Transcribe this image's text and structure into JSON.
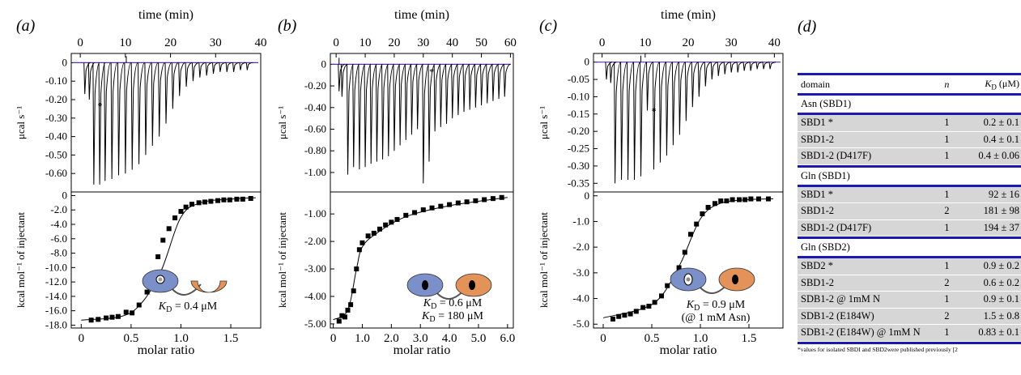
{
  "panels": [
    {
      "label": "(a)",
      "top_axis": {
        "label": "time (min)",
        "range": [
          -2,
          40
        ],
        "ticks": [
          0,
          10,
          20,
          30,
          40
        ]
      },
      "top_ylabel": "μcal s⁻¹",
      "top_yrange": [
        -0.7,
        0.05
      ],
      "top_yticks": [
        "0",
        "-0.10",
        "-0.20",
        "-0.30",
        "-0.40",
        "-0.50",
        "-0.60"
      ],
      "top_ytick_values": [
        0,
        -0.1,
        -0.2,
        -0.3,
        -0.4,
        -0.5,
        -0.6
      ],
      "asterisk": "*",
      "bottom_ylabel": "kcal mol⁻¹ of injectant",
      "bottom_yrange": [
        -18.4,
        0.5
      ],
      "bottom_yticks": [
        "0",
        "-2.0",
        "-4.0",
        "-6.0",
        "-8.0",
        "-10.0",
        "-12.0",
        "-14.0",
        "-16.0",
        "-18.0"
      ],
      "bottom_ytick_values": [
        0,
        -2,
        -4,
        -6,
        -8,
        -10,
        -12,
        -14,
        -16,
        -18
      ],
      "xlabel": "molar ratio",
      "x_range": [
        -0.1,
        1.8
      ],
      "xticks": [
        "0",
        "0.5",
        "1.0",
        "1.5"
      ],
      "xtick_values": [
        0,
        0.5,
        1.0,
        1.5
      ],
      "annotation_lines": [
        "K_D = 0.4 μM"
      ],
      "cartoon": "single-site-binding-cartoon"
    },
    {
      "label": "(b)",
      "top_axis": {
        "label": "time (min)",
        "range": [
          -2,
          61
        ],
        "ticks": [
          0,
          10,
          20,
          30,
          40,
          50,
          60
        ]
      },
      "top_ylabel": "μcal s⁻¹",
      "top_yrange": [
        -1.18,
        0.1
      ],
      "top_yticks": [
        "0",
        "-0.20",
        "-0.40",
        "-0.60",
        "-0.80",
        "-1.00"
      ],
      "top_ytick_values": [
        0,
        -0.2,
        -0.4,
        -0.6,
        -0.8,
        -1.0
      ],
      "asterisk": "*",
      "bottom_ylabel": "kcal mol⁻¹ of injectant",
      "bottom_yrange": [
        -5.15,
        -0.2
      ],
      "bottom_yticks": [
        "-1.00",
        "-2.00",
        "-3.00",
        "-4.00",
        "-5.00"
      ],
      "bottom_ytick_values": [
        -1,
        -2,
        -3,
        -4,
        -5
      ],
      "xlabel": "molar ratio",
      "x_range": [
        -0.1,
        6.2
      ],
      "xticks": [
        "0",
        "1.0",
        "2.0",
        "3.0",
        "4.0",
        "5.0",
        "6.0"
      ],
      "xtick_values": [
        0,
        1,
        2,
        3,
        4,
        5,
        6
      ],
      "annotation_lines": [
        "K_D = 0.6 μM",
        "K_D = 180 μM"
      ],
      "cartoon": "two-site-binding-cartoon"
    },
    {
      "label": "(c)",
      "top_axis": {
        "label": "time (min)",
        "range": [
          -2,
          42
        ],
        "ticks": [
          0,
          10,
          20,
          30,
          40
        ]
      },
      "top_ylabel": "μcal s⁻¹",
      "top_yrange": [
        -0.375,
        0.025
      ],
      "top_yticks": [
        "0",
        "-0.05",
        "-0.10",
        "-0.15",
        "-0.20",
        "-0.25",
        "-0.30",
        "-0.35"
      ],
      "top_ytick_values": [
        0,
        -0.05,
        -0.1,
        -0.15,
        -0.2,
        -0.25,
        -0.3,
        -0.35
      ],
      "asterisk": "*",
      "bottom_ylabel": "kcal mol⁻¹ of injectant",
      "bottom_yrange": [
        -5.15,
        0.15
      ],
      "bottom_yticks": [
        "0",
        "-1.0",
        "-2.0",
        "-3.0",
        "-4.0",
        "-5.0"
      ],
      "bottom_ytick_values": [
        0,
        -1,
        -2,
        -3,
        -4,
        -5
      ],
      "xlabel": "molar ratio",
      "x_range": [
        -0.1,
        1.85
      ],
      "xticks": [
        "0",
        "0.5",
        "1.0",
        "1.5"
      ],
      "xtick_values": [
        0,
        0.5,
        1.0,
        1.5
      ],
      "annotation_lines": [
        "K_D = 0.9 μM",
        "(@ 1 mM Asn)"
      ],
      "cartoon": "asn-bound-binding-cartoon"
    }
  ],
  "chart_data": [
    {
      "type": "line",
      "panel": "(a) thermogram",
      "xlabel": "time (min)",
      "ylabel": "μcal s⁻¹",
      "xlim": [
        -2,
        40
      ],
      "ylim": [
        -0.7,
        0.05
      ],
      "peaks": [
        {
          "t": 1.0,
          "h": -0.17
        },
        {
          "t": 2.0,
          "h": -0.2
        },
        {
          "t": 3.0,
          "h": -0.66
        },
        {
          "t": 4.3,
          "h": -0.66
        },
        {
          "t": 5.5,
          "h": -0.64
        },
        {
          "t": 7.0,
          "h": -0.63
        },
        {
          "t": 8.5,
          "h": -0.61
        },
        {
          "t": 10.0,
          "h": -0.6
        },
        {
          "t": 11.5,
          "h": -0.58
        },
        {
          "t": 13.0,
          "h": -0.55
        },
        {
          "t": 14.5,
          "h": -0.5
        },
        {
          "t": 16.0,
          "h": -0.45
        },
        {
          "t": 17.5,
          "h": -0.4
        },
        {
          "t": 19.0,
          "h": -0.33
        },
        {
          "t": 20.5,
          "h": -0.25
        },
        {
          "t": 22.0,
          "h": -0.18
        },
        {
          "t": 23.5,
          "h": -0.13
        },
        {
          "t": 25.0,
          "h": -0.1
        },
        {
          "t": 26.5,
          "h": -0.08
        },
        {
          "t": 28.0,
          "h": -0.07
        },
        {
          "t": 29.5,
          "h": -0.06
        },
        {
          "t": 31.0,
          "h": -0.05
        },
        {
          "t": 32.5,
          "h": -0.05
        },
        {
          "t": 34.0,
          "h": -0.05
        },
        {
          "t": 35.5,
          "h": -0.04
        },
        {
          "t": 37.0,
          "h": -0.04
        }
      ]
    },
    {
      "type": "scatter",
      "panel": "(a) binding isotherm",
      "xlabel": "molar ratio",
      "ylabel": "kcal mol⁻¹ of injectant",
      "xlim": [
        -0.1,
        1.8
      ],
      "ylim": [
        -18.4,
        0.5
      ],
      "x": [
        0.1,
        0.17,
        0.25,
        0.31,
        0.37,
        0.45,
        0.51,
        0.58,
        0.66,
        0.72,
        0.77,
        0.82,
        0.88,
        0.94,
        1.0,
        1.05,
        1.11,
        1.18,
        1.24,
        1.3,
        1.37,
        1.43,
        1.49,
        1.56,
        1.62,
        1.7
      ],
      "y": [
        -17.3,
        -17.2,
        -17.0,
        -16.9,
        -16.8,
        -16.2,
        -16.3,
        -15.2,
        -13.4,
        -10.9,
        -8.5,
        -6.2,
        -4.6,
        -3.1,
        -2.2,
        -1.6,
        -1.2,
        -1.0,
        -0.9,
        -0.8,
        -0.7,
        -0.6,
        -0.6,
        -0.5,
        -0.5,
        -0.4
      ],
      "fit": {
        "x": [
          0.0,
          0.4,
          0.6,
          0.8,
          1.0,
          1.2,
          1.5,
          1.75
        ],
        "y": [
          -17.3,
          -16.8,
          -15.0,
          -10.5,
          -3.0,
          -1.0,
          -0.5,
          -0.3
        ]
      }
    },
    {
      "type": "line",
      "panel": "(b) thermogram",
      "xlabel": "time (min)",
      "ylabel": "μcal s⁻¹",
      "xlim": [
        -2,
        61
      ],
      "ylim": [
        -1.18,
        0.1
      ],
      "peaks": [
        {
          "t": 1.0,
          "h": -0.25
        },
        {
          "t": 2.0,
          "h": -0.3
        },
        {
          "t": 4.0,
          "h": -1.02
        },
        {
          "t": 6.0,
          "h": -0.95
        },
        {
          "t": 8.0,
          "h": -0.97
        },
        {
          "t": 10.0,
          "h": -0.95
        },
        {
          "t": 12.0,
          "h": -0.92
        },
        {
          "t": 14.0,
          "h": -0.9
        },
        {
          "t": 16.0,
          "h": -0.88
        },
        {
          "t": 18.0,
          "h": -0.85
        },
        {
          "t": 20.0,
          "h": -0.8
        },
        {
          "t": 22.0,
          "h": -0.75
        },
        {
          "t": 24.0,
          "h": -0.7
        },
        {
          "t": 26.0,
          "h": -0.65
        },
        {
          "t": 28.0,
          "h": -0.6
        },
        {
          "t": 30.0,
          "h": -1.1
        },
        {
          "t": 32.0,
          "h": -0.9
        },
        {
          "t": 34.0,
          "h": -0.62
        },
        {
          "t": 36.0,
          "h": -0.58
        },
        {
          "t": 38.0,
          "h": -0.55
        },
        {
          "t": 40.0,
          "h": -0.5
        },
        {
          "t": 42.0,
          "h": -0.47
        },
        {
          "t": 44.0,
          "h": -0.44
        },
        {
          "t": 46.0,
          "h": -0.42
        },
        {
          "t": 48.0,
          "h": -0.4
        },
        {
          "t": 50.0,
          "h": -0.38
        },
        {
          "t": 52.0,
          "h": -0.36
        },
        {
          "t": 54.0,
          "h": -0.34
        },
        {
          "t": 56.0,
          "h": -0.32
        },
        {
          "t": 58.0,
          "h": -0.3
        }
      ]
    },
    {
      "type": "scatter",
      "panel": "(b) binding isotherm",
      "xlabel": "molar ratio",
      "ylabel": "kcal mol⁻¹ of injectant",
      "xlim": [
        -0.1,
        6.2
      ],
      "ylim": [
        -5.15,
        -0.2
      ],
      "x": [
        0.2,
        0.3,
        0.4,
        0.5,
        0.6,
        0.7,
        0.8,
        0.9,
        1.0,
        1.2,
        1.4,
        1.6,
        1.8,
        2.0,
        2.2,
        2.5,
        2.8,
        3.1,
        3.4,
        3.7,
        4.0,
        4.3,
        4.6,
        4.9,
        5.2,
        5.5,
        5.8
      ],
      "y": [
        -4.9,
        -4.7,
        -4.75,
        -4.5,
        -4.3,
        -3.8,
        -3.0,
        -2.3,
        -2.05,
        -1.8,
        -1.7,
        -1.55,
        -1.4,
        -1.3,
        -1.2,
        -1.05,
        -0.95,
        -0.85,
        -0.78,
        -0.72,
        -0.66,
        -0.6,
        -0.56,
        -0.52,
        -0.48,
        -0.44,
        -0.4
      ],
      "fit": {
        "x": [
          0.0,
          0.5,
          0.8,
          1.0,
          1.5,
          2.5,
          4.0,
          6.0
        ],
        "y": [
          -4.85,
          -4.5,
          -3.0,
          -2.2,
          -1.7,
          -1.1,
          -0.7,
          -0.4
        ]
      }
    },
    {
      "type": "line",
      "panel": "(c) thermogram",
      "xlabel": "time (min)",
      "ylabel": "μcal s⁻¹",
      "xlim": [
        -2,
        42
      ],
      "ylim": [
        -0.375,
        0.025
      ],
      "peaks": [
        {
          "t": 1.0,
          "h": -0.05
        },
        {
          "t": 2.0,
          "h": -0.06
        },
        {
          "t": 3.0,
          "h": -0.35
        },
        {
          "t": 4.5,
          "h": -0.34
        },
        {
          "t": 6.0,
          "h": -0.34
        },
        {
          "t": 7.5,
          "h": -0.34
        },
        {
          "t": 9.0,
          "h": -0.33
        },
        {
          "t": 10.5,
          "h": -0.14
        },
        {
          "t": 12.0,
          "h": -0.31
        },
        {
          "t": 13.5,
          "h": -0.29
        },
        {
          "t": 15.0,
          "h": -0.27
        },
        {
          "t": 16.5,
          "h": -0.24
        },
        {
          "t": 18.0,
          "h": -0.21
        },
        {
          "t": 19.5,
          "h": -0.17
        },
        {
          "t": 21.0,
          "h": -0.13
        },
        {
          "t": 22.5,
          "h": -0.1
        },
        {
          "t": 24.0,
          "h": -0.07
        },
        {
          "t": 25.5,
          "h": -0.05
        },
        {
          "t": 27.0,
          "h": -0.04
        },
        {
          "t": 28.5,
          "h": -0.035
        },
        {
          "t": 30.0,
          "h": -0.03
        },
        {
          "t": 31.5,
          "h": -0.03
        },
        {
          "t": 33.0,
          "h": -0.025
        },
        {
          "t": 34.5,
          "h": -0.025
        },
        {
          "t": 36.0,
          "h": -0.02
        },
        {
          "t": 37.5,
          "h": -0.02
        },
        {
          "t": 39.0,
          "h": -0.02
        }
      ]
    },
    {
      "type": "scatter",
      "panel": "(c) binding isotherm",
      "xlabel": "molar ratio",
      "ylabel": "kcal mol⁻¹ of injectant",
      "xlim": [
        -0.1,
        1.85
      ],
      "ylim": [
        -5.15,
        0.15
      ],
      "x": [
        0.1,
        0.16,
        0.22,
        0.28,
        0.34,
        0.41,
        0.47,
        0.53,
        0.6,
        0.66,
        0.72,
        0.78,
        0.84,
        0.9,
        0.96,
        1.02,
        1.08,
        1.15,
        1.21,
        1.27,
        1.33,
        1.4,
        1.46,
        1.52,
        1.6,
        1.7
      ],
      "y": [
        -4.8,
        -4.7,
        -4.65,
        -4.6,
        -4.5,
        -4.35,
        -4.3,
        -4.15,
        -3.9,
        -3.5,
        -3.2,
        -2.8,
        -2.2,
        -1.5,
        -1.1,
        -0.7,
        -0.45,
        -0.3,
        -0.2,
        -0.2,
        -0.15,
        -0.15,
        -0.15,
        -0.12,
        -0.12,
        -0.12
      ],
      "fit": {
        "x": [
          0.0,
          0.4,
          0.6,
          0.8,
          1.0,
          1.2,
          1.5,
          1.75
        ],
        "y": [
          -4.75,
          -4.4,
          -3.9,
          -2.6,
          -0.9,
          -0.3,
          -0.15,
          -0.12
        ]
      }
    }
  ],
  "table": {
    "label": "(d)",
    "header": {
      "domain": "domain",
      "n": "n",
      "kd": "K_D (μM)"
    },
    "sections": [
      {
        "title": "Asn (SBD1)",
        "rows": [
          {
            "domain": "SBD1 *",
            "n": "1",
            "kd": "0.2 ± 0.1"
          },
          {
            "domain": "SBD1-2",
            "n": "1",
            "kd": "0.4 ± 0.1"
          },
          {
            "domain": "SBD1-2 (D417F)",
            "n": "1",
            "kd": "0.4 ± 0.06"
          }
        ]
      },
      {
        "title": "Gln (SBD1)",
        "rows": [
          {
            "domain": "SBD1 *",
            "n": "1",
            "kd": "92 ± 16"
          },
          {
            "domain": "SBD1-2",
            "n": "2",
            "kd": "181 ± 98"
          },
          {
            "domain": "SBD1-2 (D417F)",
            "n": "1",
            "kd": "194 ± 37"
          }
        ]
      },
      {
        "title": "Gln (SBD2)",
        "rows": [
          {
            "domain": "SBD2 *",
            "n": "1",
            "kd": "0.9 ± 0.2"
          },
          {
            "domain": "SBD1-2",
            "n": "2",
            "kd": "0.6 ± 0.2"
          },
          {
            "domain": "SDB1-2 @ 1mM N",
            "n": "1",
            "kd": "0.9 ± 0.1"
          },
          {
            "domain": "SDB1-2 (E184W)",
            "n": "2",
            "kd": "1.5 ± 0.8"
          },
          {
            "domain": "SDB1-2 (E184W) @ 1mM N",
            "n": "1",
            "kd": "0.83 ± 0.1"
          }
        ]
      }
    ],
    "footnote": "*values for isolated SBDI and SBD2were published previously [2"
  },
  "colors": {
    "trace": "#000000",
    "baseline": "#5b2fb0",
    "table_rule": "#1a1ab0",
    "table_row": "#d6d6d6",
    "lobe_blue": "#7b90c8",
    "lobe_orange": "#e3925a"
  }
}
